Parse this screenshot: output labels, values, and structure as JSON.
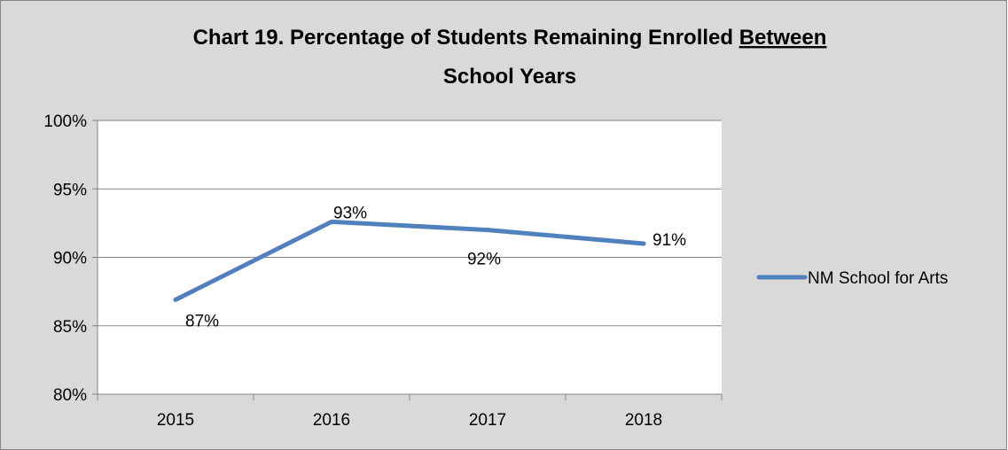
{
  "chart_data": {
    "type": "line",
    "title": "Chart 19. Percentage of Students Remaining Enrolled Between School Years",
    "title_lines": [
      [
        {
          "text": "Chart 19. Percentage of Students Remaining Enrolled ",
          "underline": false
        },
        {
          "text": "Between",
          "underline": true
        }
      ],
      [
        {
          "text": "School Years",
          "underline": false
        }
      ]
    ],
    "xlabel": "",
    "ylabel": "",
    "categories": [
      "2015",
      "2016",
      "2017",
      "2018"
    ],
    "series": [
      {
        "name": "NM School for Arts",
        "values": [
          0.869,
          0.926,
          0.92,
          0.91
        ],
        "data_labels": [
          "87%",
          "93%",
          "92%",
          "91%"
        ],
        "label_placement": [
          "below-right",
          "above-right",
          "below",
          "right"
        ],
        "color": "#4f81bd"
      }
    ],
    "ylim": [
      0.8,
      1.0
    ],
    "yticks": [
      0.8,
      0.85,
      0.9,
      0.95,
      1.0
    ],
    "ytick_labels": [
      "80%",
      "85%",
      "90%",
      "95%",
      "100%"
    ],
    "grid": true,
    "legend_position": "right"
  },
  "style": {
    "chart_background": "#d9d9d9",
    "plot_background": "#ffffff",
    "gridline_color": "#868686",
    "border_color": "#868686"
  }
}
